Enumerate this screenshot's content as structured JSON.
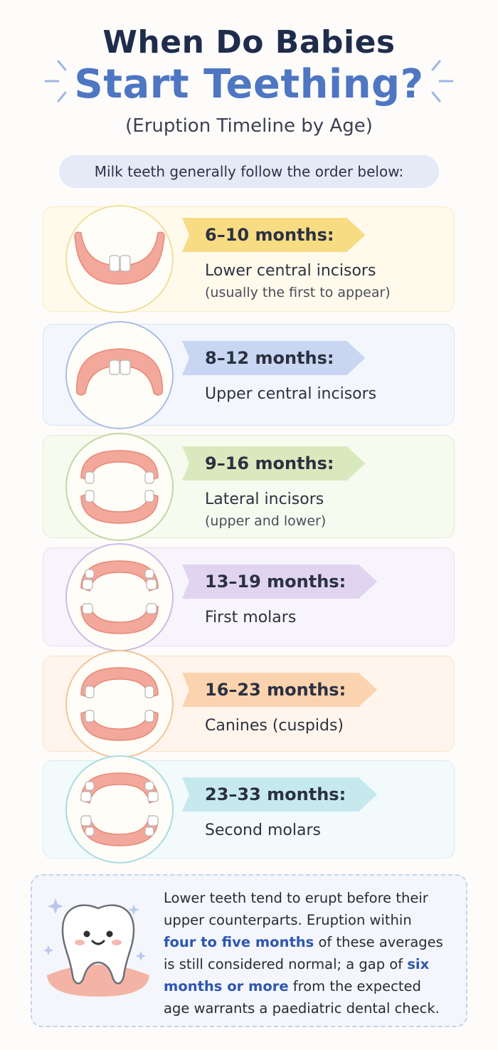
{
  "header": {
    "title_line1": "When Do Babies",
    "title_line2": "Start Teething?",
    "subtitle": "(Eruption Timeline by Age)"
  },
  "intro": "Milk teeth generally follow the order below:",
  "stages": [
    {
      "age": "6–10 months:",
      "teeth": "Lower central incisors",
      "note": "(usually the first to appear)",
      "accent": "#f7dc83",
      "card_bg": "#fffaeb",
      "card_border": "#f6ecc8",
      "circle_border": "#f1df9a",
      "illustration": "lower-central-incisors-icon"
    },
    {
      "age": "8–12 months:",
      "teeth": "Upper central incisors",
      "note": "",
      "accent": "#c9d6f2",
      "card_bg": "#f3f6fd",
      "card_border": "#dbe3f4",
      "circle_border": "#a9bee6",
      "illustration": "upper-central-incisors-icon"
    },
    {
      "age": "9–16 months:",
      "teeth": "Lateral incisors",
      "note": "(upper and lower)",
      "accent": "#d9e9bd",
      "card_bg": "#f6faef",
      "card_border": "#e2ecd2",
      "circle_border": "#c2d8a4",
      "illustration": "lateral-incisors-icon"
    },
    {
      "age": "13–19 months:",
      "teeth": "First molars",
      "note": "",
      "accent": "#e0d4f0",
      "card_bg": "#f8f4fc",
      "card_border": "#e8def3",
      "circle_border": "#cdbbe6",
      "illustration": "first-molars-icon"
    },
    {
      "age": "16–23 months:",
      "teeth": "Canines (cuspids)",
      "note": "",
      "accent": "#fbd3ae",
      "card_bg": "#fff5ec",
      "card_border": "#f8e2cc",
      "circle_border": "#f2c49a",
      "illustration": "canines-icon"
    },
    {
      "age": "23–33 months:",
      "teeth": "Second molars",
      "note": "",
      "accent": "#c6e9ed",
      "card_bg": "#f2fafb",
      "card_border": "#d6eef0",
      "circle_border": "#a9dbe1",
      "illustration": "second-molars-icon"
    }
  ],
  "footer": {
    "part1": "Lower teeth tend to erupt before their upper counterparts. Eruption within ",
    "highlight1": "four to five months",
    "part2": " of these averages is still considered normal; a gap of ",
    "highlight2": "six months or more",
    "part3": " from the expected age warrants a paediatric dental check.",
    "highlight_color": "#2e57b0",
    "mascot": "happy-tooth-icon"
  }
}
